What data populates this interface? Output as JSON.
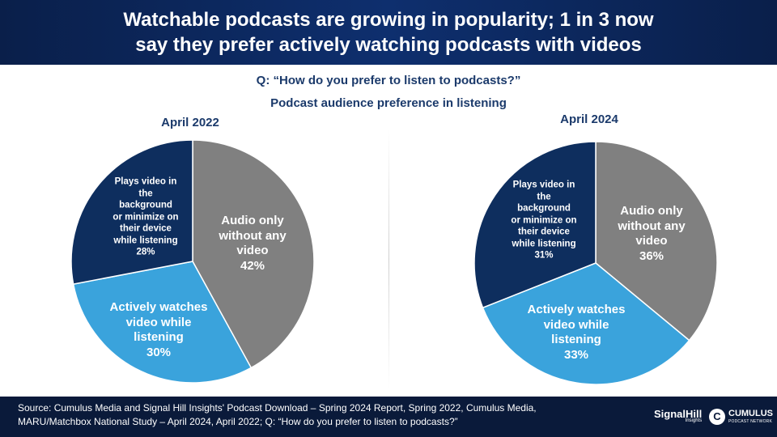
{
  "header": {
    "title_line1": "Watchable podcasts are growing in popularity; 1 in 3 now",
    "title_line2": "say they prefer actively watching podcasts with videos"
  },
  "question": "Q: “How do you prefer to listen to podcasts?”",
  "subtitle": "Podcast audience preference in listening",
  "chart_data": [
    {
      "type": "pie",
      "title": "April 2022",
      "slices": [
        {
          "label_lines": [
            "Audio only",
            "without any",
            "video"
          ],
          "value": 42,
          "value_label": "42%",
          "color": "#808080"
        },
        {
          "label_lines": [
            "Actively watches",
            "video while",
            "listening"
          ],
          "value": 30,
          "value_label": "30%",
          "color": "#3aa3dc"
        },
        {
          "label_lines": [
            "Plays video in",
            "the",
            "background",
            "or minimize on",
            "their device",
            "while listening"
          ],
          "value": 28,
          "value_label": "28%",
          "color": "#0e2e5e"
        }
      ]
    },
    {
      "type": "pie",
      "title": "April 2024",
      "slices": [
        {
          "label_lines": [
            "Audio only",
            "without any",
            "video"
          ],
          "value": 36,
          "value_label": "36%",
          "color": "#808080"
        },
        {
          "label_lines": [
            "Actively watches",
            "video while",
            "listening"
          ],
          "value": 33,
          "value_label": "33%",
          "color": "#3aa3dc"
        },
        {
          "label_lines": [
            "Plays video in",
            "the",
            "background",
            "or minimize on",
            "their device",
            "while listening"
          ],
          "value": 31,
          "value_label": "31%",
          "color": "#0e2e5e"
        }
      ]
    }
  ],
  "footer": {
    "source_line1": "Source: Cumulus Media and Signal Hill Insights' Podcast Download – Spring 2024 Report, Spring 2022, Cumulus Media,",
    "source_line2": "MARU/Matchbox National Study – April 2024, April 2022; Q: “How do you prefer to listen to podcasts?”",
    "logo_signalhill": "SignalHill",
    "logo_signalhill_sub": "Insights",
    "logo_cumulus": "CUMULUS",
    "logo_cumulus_sub": "PODCAST NETWORK"
  }
}
